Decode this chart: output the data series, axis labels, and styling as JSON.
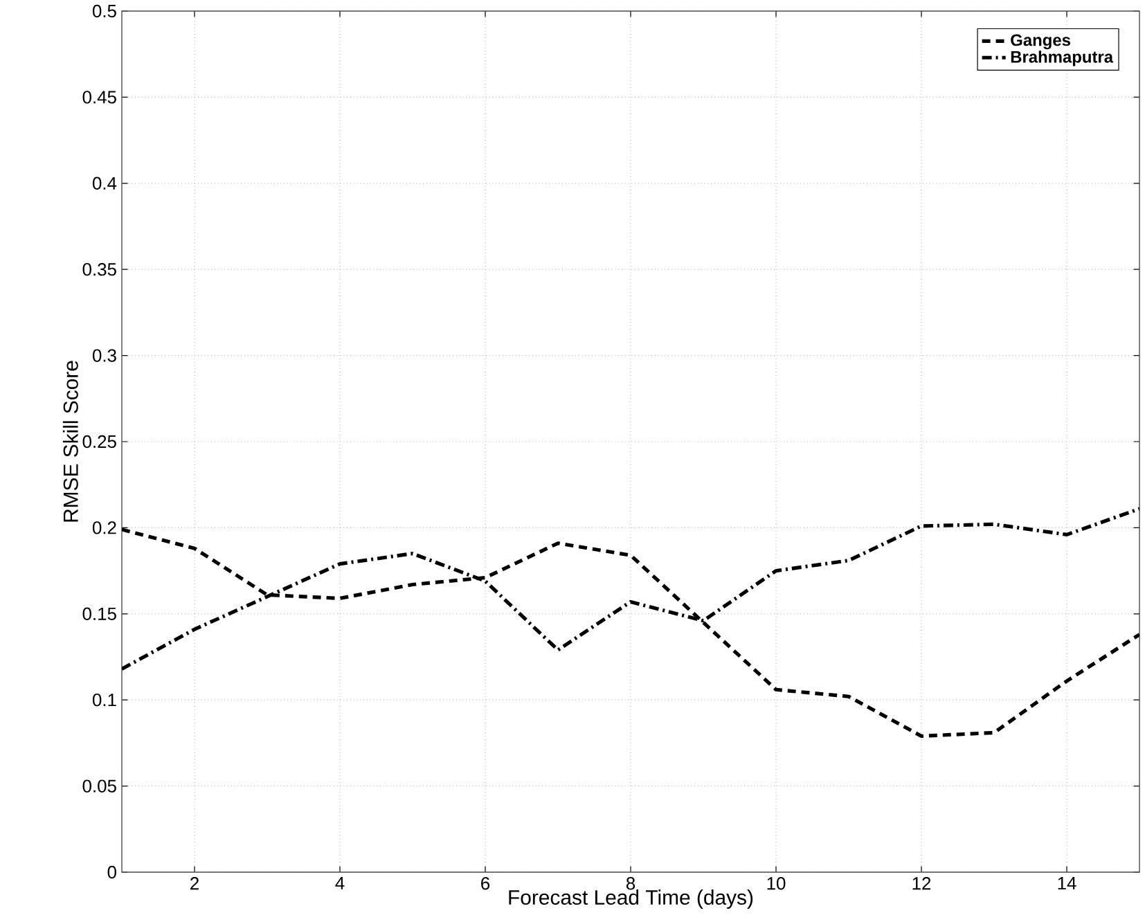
{
  "chart_data": {
    "type": "line",
    "xlabel": "Forecast Lead Time (days)",
    "ylabel": "RMSE Skill Score",
    "x": [
      1,
      2,
      3,
      4,
      5,
      6,
      7,
      8,
      9,
      10,
      11,
      12,
      13,
      14,
      15
    ],
    "series": [
      {
        "name": "Ganges",
        "color": "#000000",
        "line_style": "dashed",
        "values": [
          0.199,
          0.188,
          0.161,
          0.159,
          0.167,
          0.171,
          0.191,
          0.184,
          0.145,
          0.106,
          0.102,
          0.079,
          0.081,
          0.111,
          0.138
        ]
      },
      {
        "name": "Brahmaputra",
        "color": "#000000",
        "line_style": "dashdot",
        "values": [
          0.118,
          0.141,
          0.16,
          0.179,
          0.185,
          0.169,
          0.129,
          0.157,
          0.146,
          0.175,
          0.181,
          0.201,
          0.202,
          0.196,
          0.211
        ]
      }
    ],
    "xlim": [
      1,
      15
    ],
    "xticks": [
      2,
      4,
      6,
      8,
      10,
      12,
      14
    ],
    "ylim": [
      0,
      0.5
    ],
    "yticks": [
      0,
      0.05,
      0.1,
      0.15,
      0.2,
      0.25,
      0.3,
      0.35,
      0.4,
      0.45,
      0.5
    ],
    "grid": true,
    "legend": "top right",
    "marker": "none"
  }
}
